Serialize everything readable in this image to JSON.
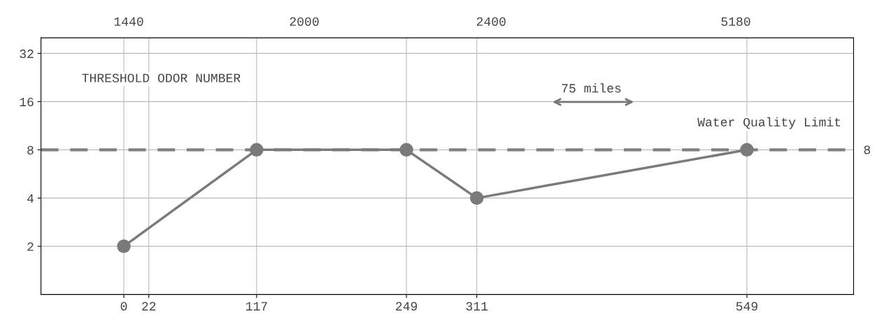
{
  "chart_data": {
    "type": "line",
    "x": [
      0,
      117,
      249,
      311,
      549
    ],
    "series": [
      {
        "color": "#7a7a7a",
        "values": [
          2,
          8,
          8,
          4,
          8
        ]
      }
    ],
    "marker": "circle",
    "line_style": "solid",
    "log": "y",
    "xlim": [
      -73,
      643
    ],
    "xticks": [
      0,
      22,
      117,
      249,
      311,
      549
    ],
    "ylim": [
      1,
      40
    ],
    "yticks": [
      2,
      4,
      8,
      16,
      32
    ],
    "ref_lines": [
      {
        "axis": "y",
        "value": 8,
        "label": "Water Quality Limit",
        "color": "#808080",
        "line_style": "dashed"
      }
    ],
    "annotations": [
      "1440",
      "2000",
      "2400",
      "5180",
      "THRESHOLD ODOR NUMBER",
      "75 miles",
      "8"
    ],
    "grid": true
  }
}
